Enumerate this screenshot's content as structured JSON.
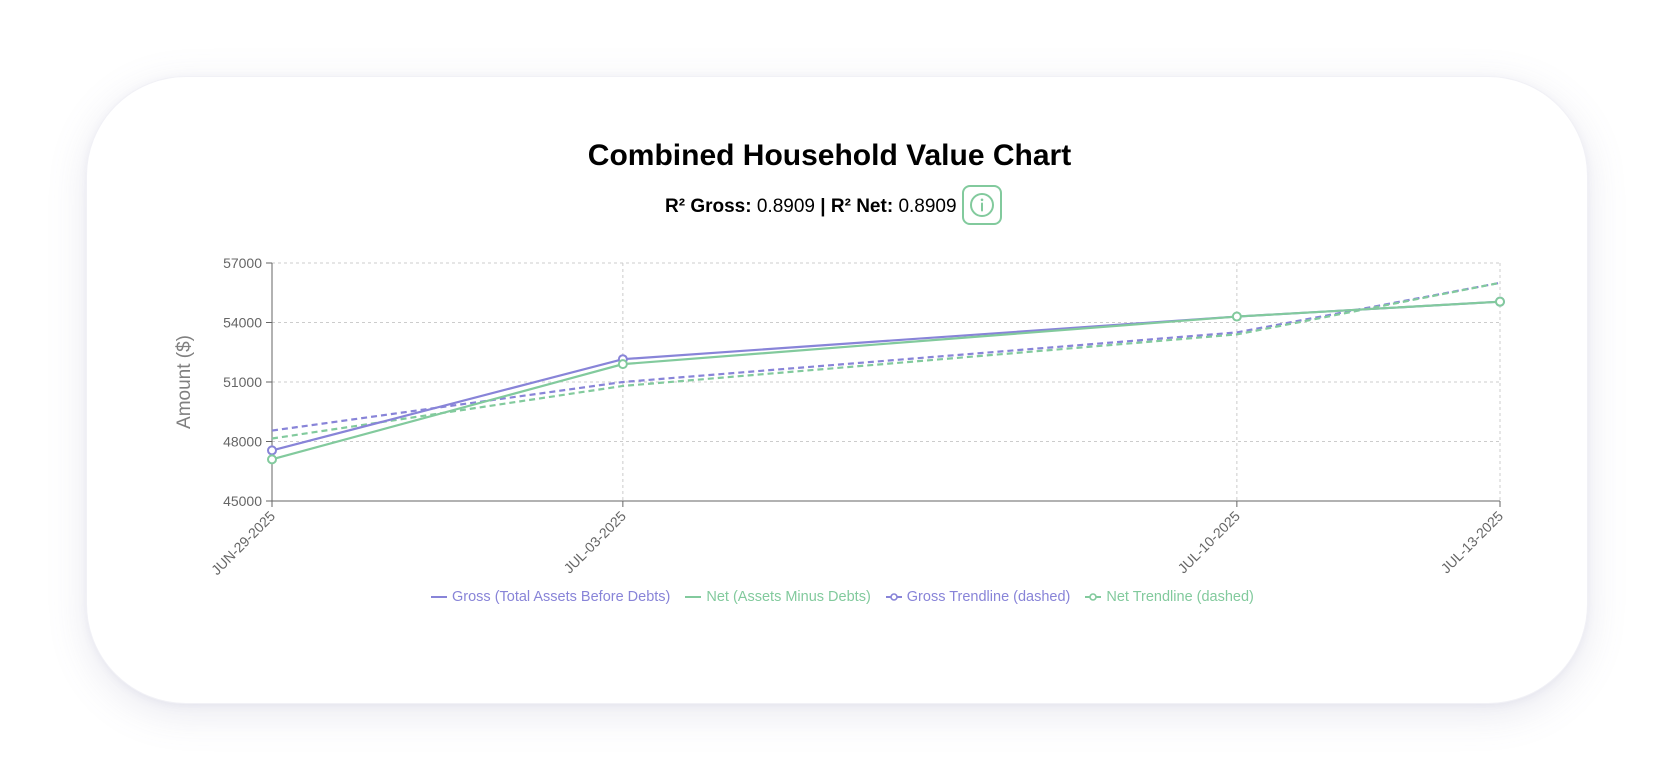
{
  "title": "Combined Household Value Chart",
  "stats": {
    "gross_label": "R² Gross:",
    "gross_value": "0.8909",
    "separator": "|",
    "net_label": "R² Net:",
    "net_value": "0.8909"
  },
  "info_icon": "info-circle-icon",
  "colors": {
    "gross": "#8884d8",
    "net": "#82ca9d",
    "axis": "#666666",
    "grid": "#cccccc"
  },
  "chart_data": {
    "type": "line",
    "x": [
      "JUN-29-2025",
      "JUL-03-2025",
      "JUL-10-2025",
      "JUL-13-2025"
    ],
    "ylabel": "Amount ($)",
    "ylim": [
      45000,
      57000
    ],
    "yticks": [
      "45000",
      "48000",
      "51000",
      "54000",
      "57000"
    ],
    "grid": true,
    "legend_position": "bottom",
    "series": [
      {
        "name": "Gross (Total Assets Before Debts)",
        "key": "gross",
        "style": "solid",
        "values": [
          47550,
          52150,
          54300,
          55050
        ]
      },
      {
        "name": "Net (Assets Minus Debts)",
        "key": "net",
        "style": "solid",
        "values": [
          47100,
          51900,
          54300,
          55050
        ]
      },
      {
        "name": "Gross Trendline (dashed)",
        "key": "gross",
        "style": "dashed",
        "values": [
          48550,
          51000,
          53500,
          56000
        ]
      },
      {
        "name": "Net Trendline (dashed)",
        "key": "net",
        "style": "dashed",
        "values": [
          48150,
          50800,
          53400,
          56000
        ]
      }
    ]
  }
}
